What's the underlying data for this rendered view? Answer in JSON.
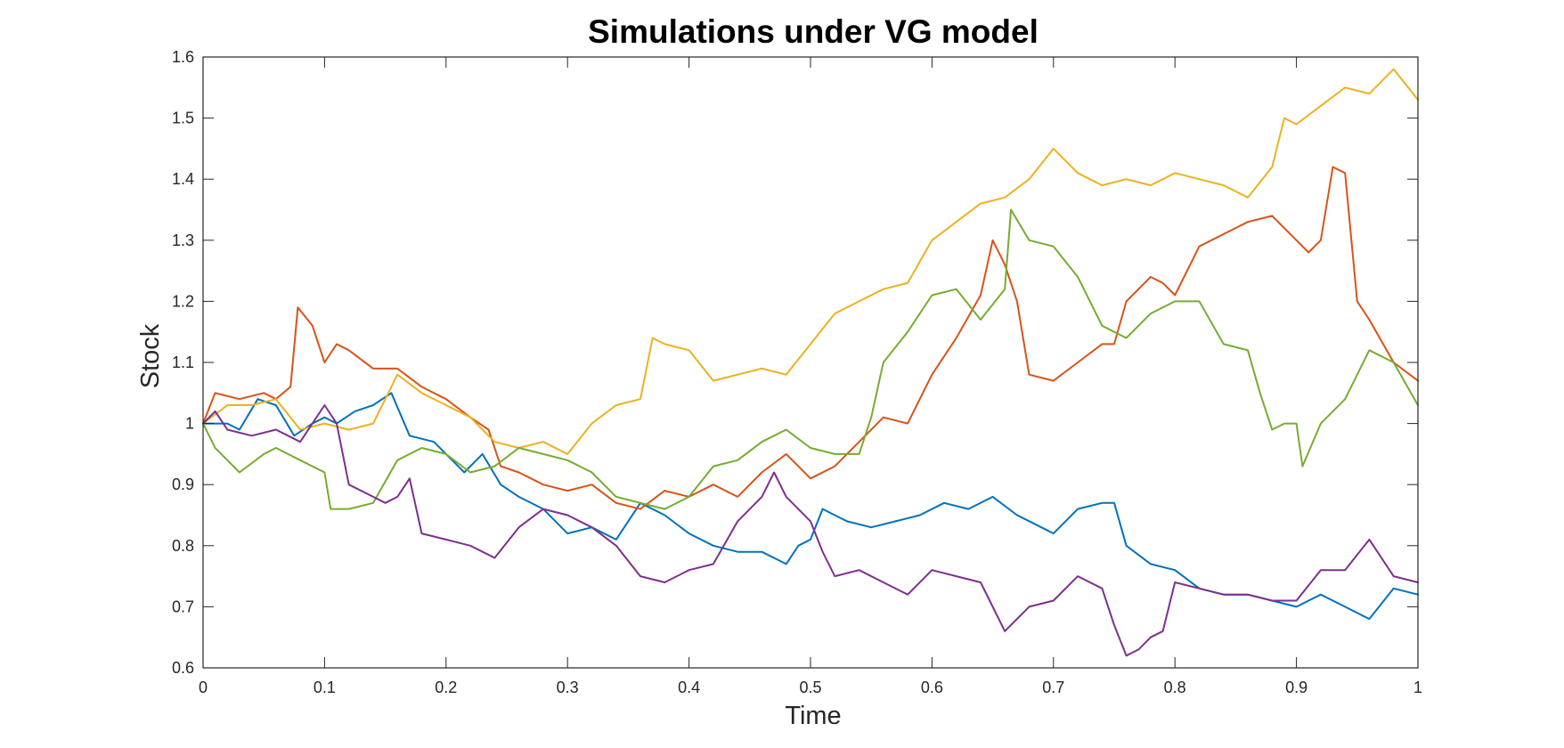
{
  "chart_data": {
    "type": "line",
    "title": "Simulations under VG model",
    "xlabel": "Time",
    "ylabel": "Stock",
    "xlim": [
      0,
      1
    ],
    "ylim": [
      0.6,
      1.6
    ],
    "xticks": [
      0,
      0.1,
      0.2,
      0.3,
      0.4,
      0.5,
      0.6,
      0.7,
      0.8,
      0.9,
      1
    ],
    "xtick_labels": [
      "0",
      "0.1",
      "0.2",
      "0.3",
      "0.4",
      "0.5",
      "0.6",
      "0.7",
      "0.8",
      "0.9",
      "1"
    ],
    "yticks": [
      0.6,
      0.7,
      0.8,
      0.9,
      1.0,
      1.1,
      1.2,
      1.3,
      1.4,
      1.5,
      1.6
    ],
    "ytick_labels": [
      "0.6",
      "0.7",
      "0.8",
      "0.9",
      "1",
      "1.1",
      "1.2",
      "1.3",
      "1.4",
      "1.5",
      "1.6"
    ],
    "grid": false,
    "series": [
      {
        "color": "#0072BD",
        "x": [
          0,
          0.02,
          0.03,
          0.045,
          0.06,
          0.075,
          0.09,
          0.1,
          0.11,
          0.125,
          0.14,
          0.155,
          0.17,
          0.19,
          0.2,
          0.215,
          0.23,
          0.245,
          0.26,
          0.28,
          0.3,
          0.32,
          0.34,
          0.36,
          0.38,
          0.4,
          0.42,
          0.44,
          0.46,
          0.48,
          0.49,
          0.5,
          0.51,
          0.53,
          0.55,
          0.57,
          0.59,
          0.61,
          0.63,
          0.65,
          0.67,
          0.69,
          0.7,
          0.72,
          0.74,
          0.75,
          0.76,
          0.78,
          0.8,
          0.82,
          0.84,
          0.86,
          0.88,
          0.9,
          0.92,
          0.94,
          0.96,
          0.98,
          1.0
        ],
        "y": [
          1.0,
          1.0,
          0.99,
          1.04,
          1.03,
          0.98,
          1.0,
          1.01,
          1.0,
          1.02,
          1.03,
          1.05,
          0.98,
          0.97,
          0.95,
          0.92,
          0.95,
          0.9,
          0.88,
          0.86,
          0.82,
          0.83,
          0.81,
          0.87,
          0.85,
          0.82,
          0.8,
          0.79,
          0.79,
          0.77,
          0.8,
          0.81,
          0.86,
          0.84,
          0.83,
          0.84,
          0.85,
          0.87,
          0.86,
          0.88,
          0.85,
          0.83,
          0.82,
          0.86,
          0.87,
          0.87,
          0.8,
          0.77,
          0.76,
          0.73,
          0.72,
          0.72,
          0.71,
          0.7,
          0.72,
          0.7,
          0.68,
          0.73,
          0.72
        ]
      },
      {
        "color": "#D95319",
        "x": [
          0,
          0.01,
          0.03,
          0.05,
          0.06,
          0.072,
          0.078,
          0.09,
          0.1,
          0.11,
          0.12,
          0.14,
          0.16,
          0.18,
          0.2,
          0.22,
          0.235,
          0.245,
          0.26,
          0.28,
          0.3,
          0.32,
          0.34,
          0.36,
          0.38,
          0.4,
          0.42,
          0.44,
          0.46,
          0.48,
          0.5,
          0.52,
          0.54,
          0.56,
          0.58,
          0.6,
          0.62,
          0.64,
          0.65,
          0.66,
          0.67,
          0.68,
          0.7,
          0.72,
          0.74,
          0.75,
          0.76,
          0.78,
          0.79,
          0.8,
          0.82,
          0.84,
          0.86,
          0.88,
          0.9,
          0.91,
          0.92,
          0.93,
          0.94,
          0.95,
          0.96,
          0.98,
          1.0
        ],
        "y": [
          1.0,
          1.05,
          1.04,
          1.05,
          1.04,
          1.06,
          1.19,
          1.16,
          1.1,
          1.13,
          1.12,
          1.09,
          1.09,
          1.06,
          1.04,
          1.01,
          0.99,
          0.93,
          0.92,
          0.9,
          0.89,
          0.9,
          0.87,
          0.86,
          0.89,
          0.88,
          0.9,
          0.88,
          0.92,
          0.95,
          0.91,
          0.93,
          0.97,
          1.01,
          1.0,
          1.08,
          1.14,
          1.21,
          1.3,
          1.26,
          1.2,
          1.08,
          1.07,
          1.1,
          1.13,
          1.13,
          1.2,
          1.24,
          1.23,
          1.21,
          1.29,
          1.31,
          1.33,
          1.34,
          1.3,
          1.28,
          1.3,
          1.42,
          1.41,
          1.2,
          1.17,
          1.1,
          1.07
        ]
      },
      {
        "color": "#EDB120",
        "x": [
          0,
          0.02,
          0.04,
          0.06,
          0.08,
          0.1,
          0.12,
          0.14,
          0.16,
          0.18,
          0.2,
          0.22,
          0.24,
          0.26,
          0.28,
          0.3,
          0.32,
          0.34,
          0.36,
          0.37,
          0.38,
          0.4,
          0.42,
          0.44,
          0.46,
          0.48,
          0.5,
          0.52,
          0.54,
          0.56,
          0.58,
          0.6,
          0.62,
          0.64,
          0.66,
          0.68,
          0.7,
          0.72,
          0.74,
          0.76,
          0.78,
          0.8,
          0.82,
          0.84,
          0.86,
          0.88,
          0.89,
          0.9,
          0.92,
          0.94,
          0.96,
          0.98,
          1.0
        ],
        "y": [
          1.0,
          1.03,
          1.03,
          1.04,
          0.99,
          1.0,
          0.99,
          1.0,
          1.08,
          1.05,
          1.03,
          1.01,
          0.97,
          0.96,
          0.97,
          0.95,
          1.0,
          1.03,
          1.04,
          1.14,
          1.13,
          1.12,
          1.07,
          1.08,
          1.09,
          1.08,
          1.13,
          1.18,
          1.2,
          1.22,
          1.23,
          1.3,
          1.33,
          1.36,
          1.37,
          1.4,
          1.45,
          1.41,
          1.39,
          1.4,
          1.39,
          1.41,
          1.4,
          1.39,
          1.37,
          1.42,
          1.5,
          1.49,
          1.52,
          1.55,
          1.54,
          1.58,
          1.53
        ]
      },
      {
        "color": "#77AC30",
        "x": [
          0,
          0.01,
          0.02,
          0.03,
          0.05,
          0.06,
          0.08,
          0.1,
          0.105,
          0.12,
          0.14,
          0.16,
          0.18,
          0.2,
          0.22,
          0.24,
          0.26,
          0.28,
          0.3,
          0.32,
          0.34,
          0.36,
          0.38,
          0.4,
          0.42,
          0.44,
          0.46,
          0.48,
          0.5,
          0.52,
          0.54,
          0.55,
          0.56,
          0.58,
          0.6,
          0.62,
          0.64,
          0.66,
          0.665,
          0.68,
          0.7,
          0.72,
          0.74,
          0.76,
          0.78,
          0.8,
          0.82,
          0.84,
          0.86,
          0.87,
          0.88,
          0.89,
          0.9,
          0.905,
          0.92,
          0.94,
          0.96,
          0.98,
          1.0
        ],
        "y": [
          1.0,
          0.96,
          0.94,
          0.92,
          0.95,
          0.96,
          0.94,
          0.92,
          0.86,
          0.86,
          0.87,
          0.94,
          0.96,
          0.95,
          0.92,
          0.93,
          0.96,
          0.95,
          0.94,
          0.92,
          0.88,
          0.87,
          0.86,
          0.88,
          0.93,
          0.94,
          0.97,
          0.99,
          0.96,
          0.95,
          0.95,
          1.01,
          1.1,
          1.15,
          1.21,
          1.22,
          1.17,
          1.22,
          1.35,
          1.3,
          1.29,
          1.24,
          1.16,
          1.14,
          1.18,
          1.2,
          1.2,
          1.13,
          1.12,
          1.05,
          0.99,
          1.0,
          1.0,
          0.93,
          1.0,
          1.04,
          1.12,
          1.1,
          1.03
        ]
      },
      {
        "color": "#7E2F8E",
        "x": [
          0,
          0.01,
          0.02,
          0.04,
          0.06,
          0.08,
          0.09,
          0.1,
          0.11,
          0.12,
          0.14,
          0.15,
          0.16,
          0.17,
          0.18,
          0.2,
          0.22,
          0.24,
          0.26,
          0.28,
          0.3,
          0.32,
          0.34,
          0.36,
          0.38,
          0.4,
          0.42,
          0.44,
          0.46,
          0.47,
          0.48,
          0.5,
          0.51,
          0.52,
          0.54,
          0.56,
          0.58,
          0.6,
          0.62,
          0.64,
          0.66,
          0.68,
          0.7,
          0.72,
          0.74,
          0.75,
          0.76,
          0.77,
          0.78,
          0.79,
          0.8,
          0.82,
          0.84,
          0.86,
          0.88,
          0.9,
          0.92,
          0.94,
          0.96,
          0.98,
          1.0
        ],
        "y": [
          1.0,
          1.02,
          0.99,
          0.98,
          0.99,
          0.97,
          1.0,
          1.03,
          1.0,
          0.9,
          0.88,
          0.87,
          0.88,
          0.91,
          0.82,
          0.81,
          0.8,
          0.78,
          0.83,
          0.86,
          0.85,
          0.83,
          0.8,
          0.75,
          0.74,
          0.76,
          0.77,
          0.84,
          0.88,
          0.92,
          0.88,
          0.84,
          0.79,
          0.75,
          0.76,
          0.74,
          0.72,
          0.76,
          0.75,
          0.74,
          0.66,
          0.7,
          0.71,
          0.75,
          0.73,
          0.67,
          0.62,
          0.63,
          0.65,
          0.66,
          0.74,
          0.73,
          0.72,
          0.72,
          0.71,
          0.71,
          0.76,
          0.76,
          0.81,
          0.75,
          0.74
        ]
      }
    ]
  }
}
